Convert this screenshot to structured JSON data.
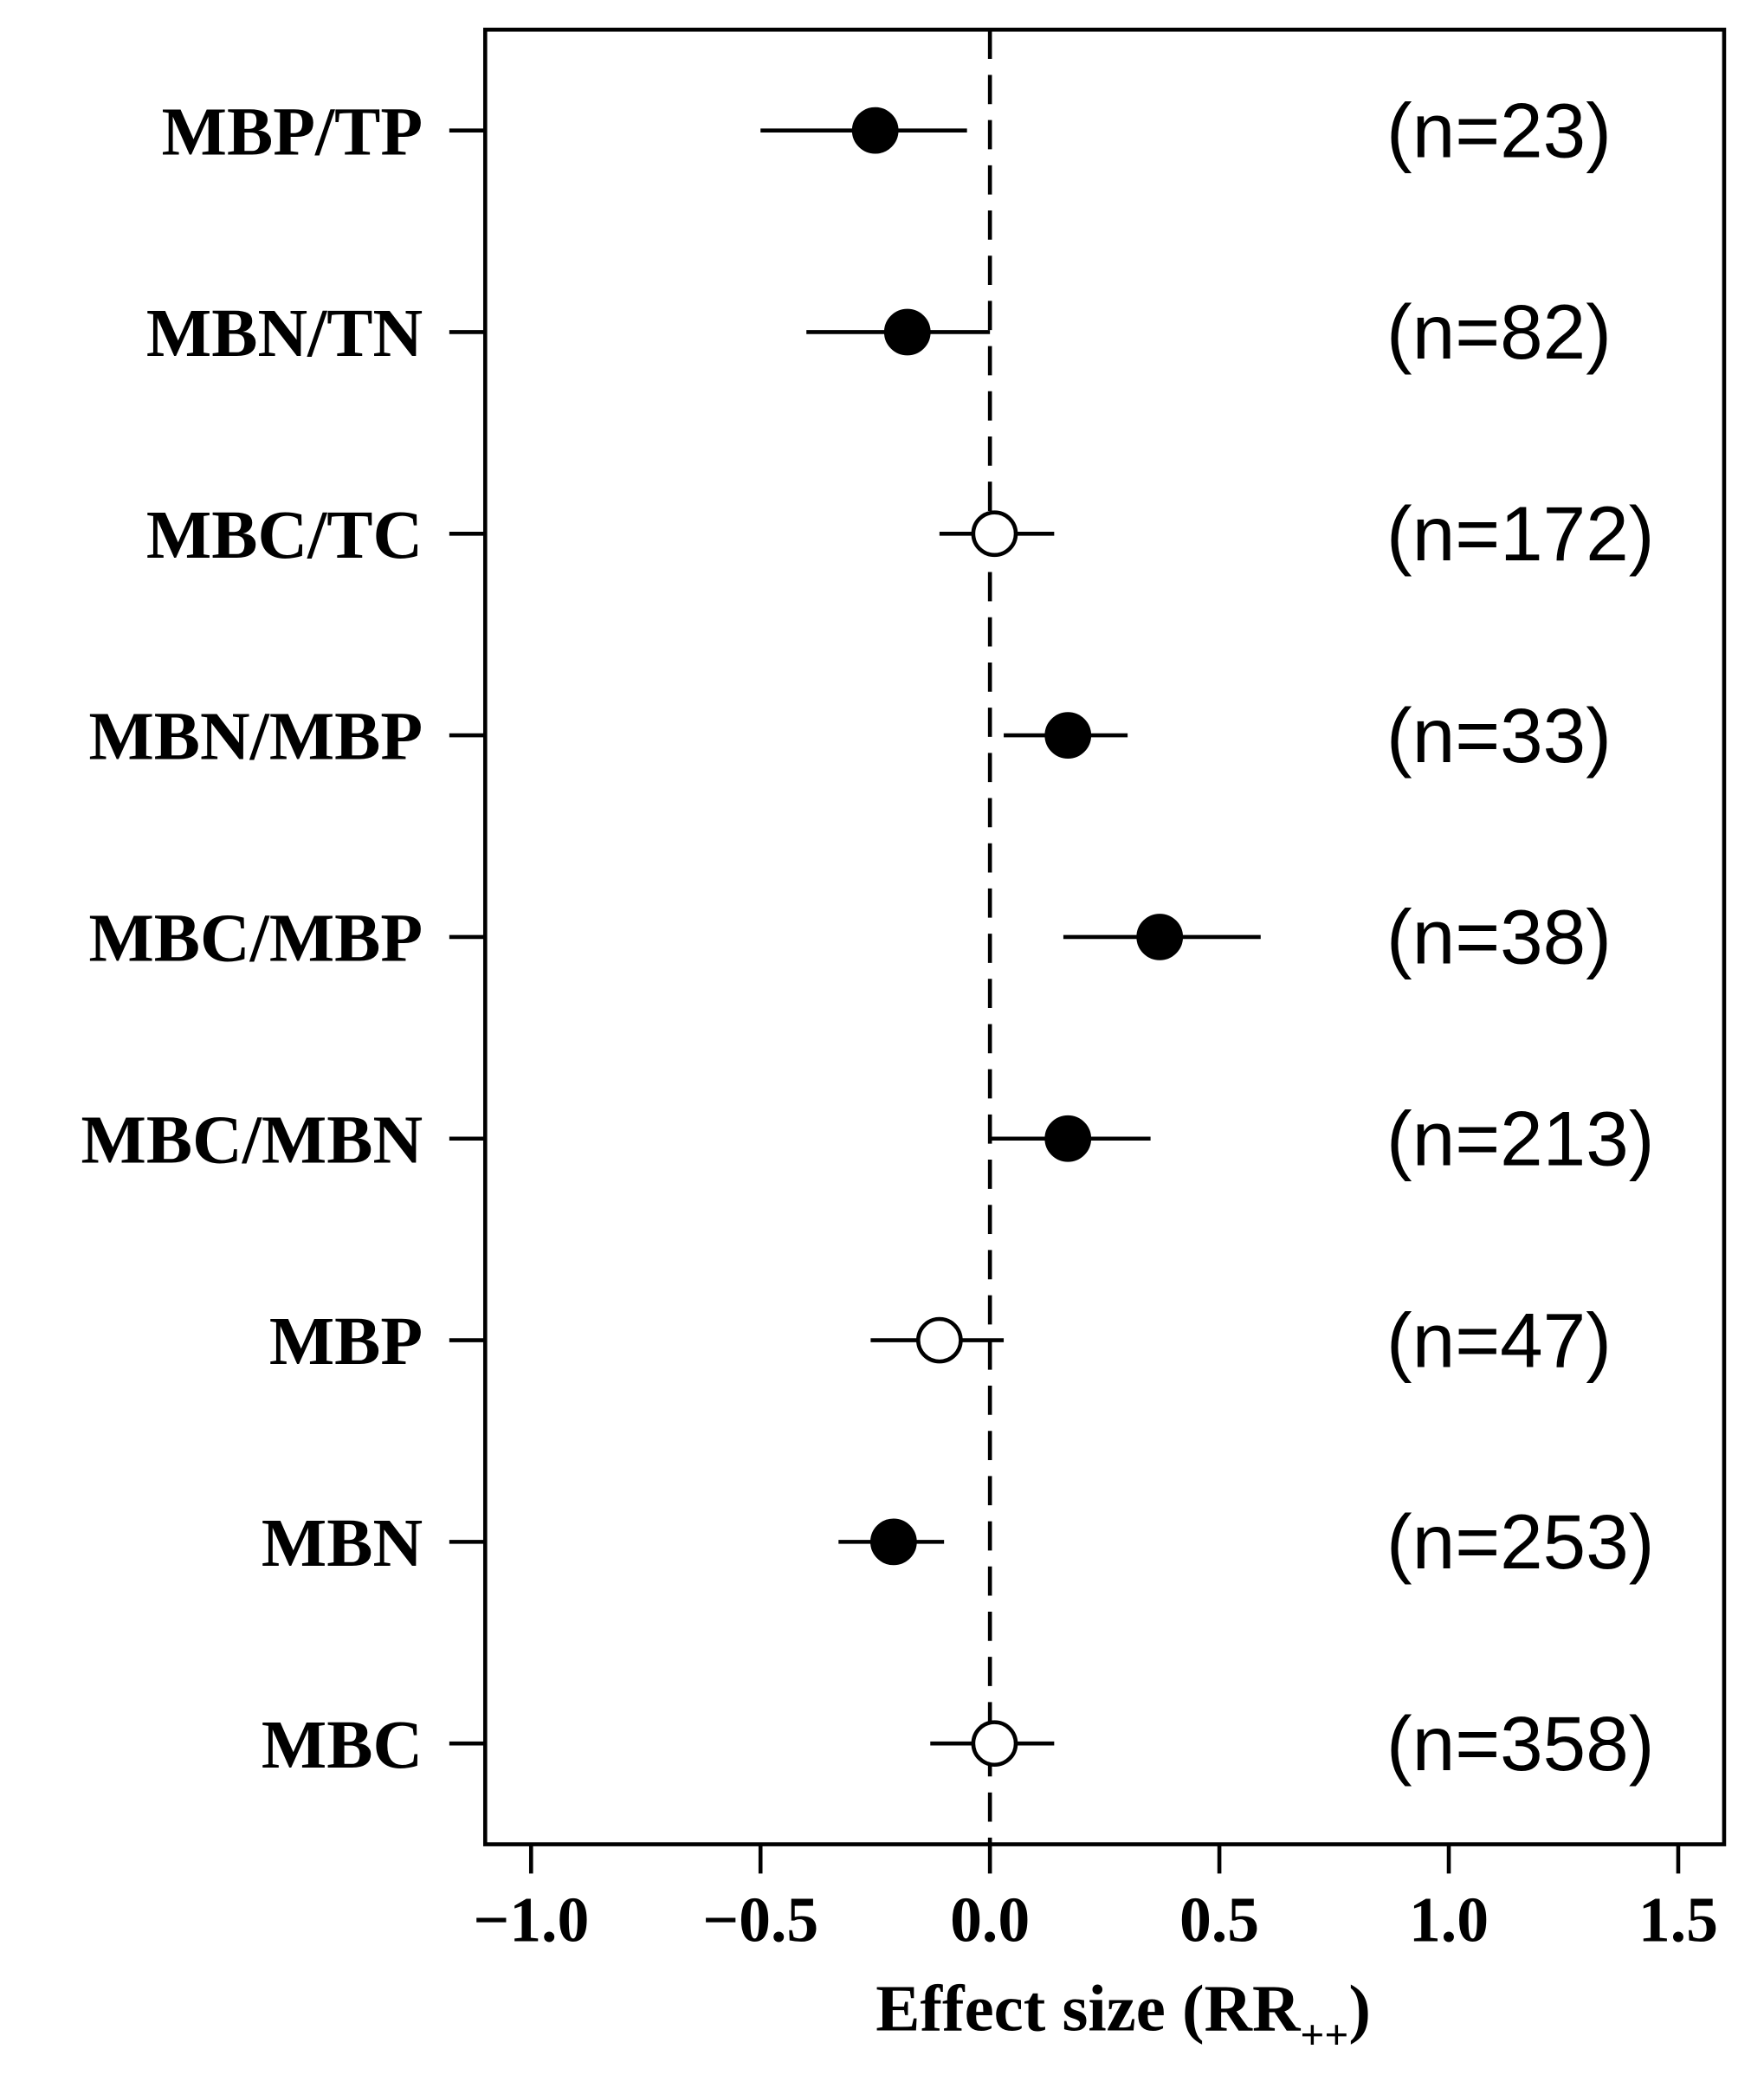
{
  "chart_data": {
    "type": "forest",
    "categories": [
      "MBP/TP",
      "MBN/TN",
      "MBC/TC",
      "MBN/MBP",
      "MBC/MBP",
      "MBC/MBN",
      "MBP",
      "MBN",
      "MBC"
    ],
    "values": [
      -0.25,
      -0.18,
      0.01,
      0.17,
      0.37,
      0.17,
      -0.11,
      -0.21,
      0.01
    ],
    "lower": [
      -0.5,
      -0.4,
      -0.11,
      0.03,
      0.16,
      0.0,
      -0.26,
      -0.33,
      -0.13
    ],
    "upper": [
      -0.05,
      0.0,
      0.14,
      0.3,
      0.59,
      0.35,
      0.03,
      -0.1,
      0.14
    ],
    "filled": [
      true,
      true,
      false,
      true,
      true,
      true,
      false,
      true,
      false
    ],
    "annotations": [
      "(n=23)",
      "(n=82)",
      "(n=172)",
      "(n=33)",
      "(n=38)",
      "(n=213)",
      "(n=47)",
      "(n=253)",
      "(n=358)"
    ],
    "xlabel": [
      "Effect size (RR",
      "++",
      ")"
    ],
    "xlim": [
      -1.1,
      1.6
    ],
    "xticks": [
      {
        "value": -1.0,
        "label": "−1.0"
      },
      {
        "value": -0.5,
        "label": "−0.5"
      },
      {
        "value": 0,
        "label": "0.0"
      },
      0.5,
      {
        "value": 1.0,
        "label": "1.0"
      },
      1.5
    ],
    "color": "#000000"
  }
}
